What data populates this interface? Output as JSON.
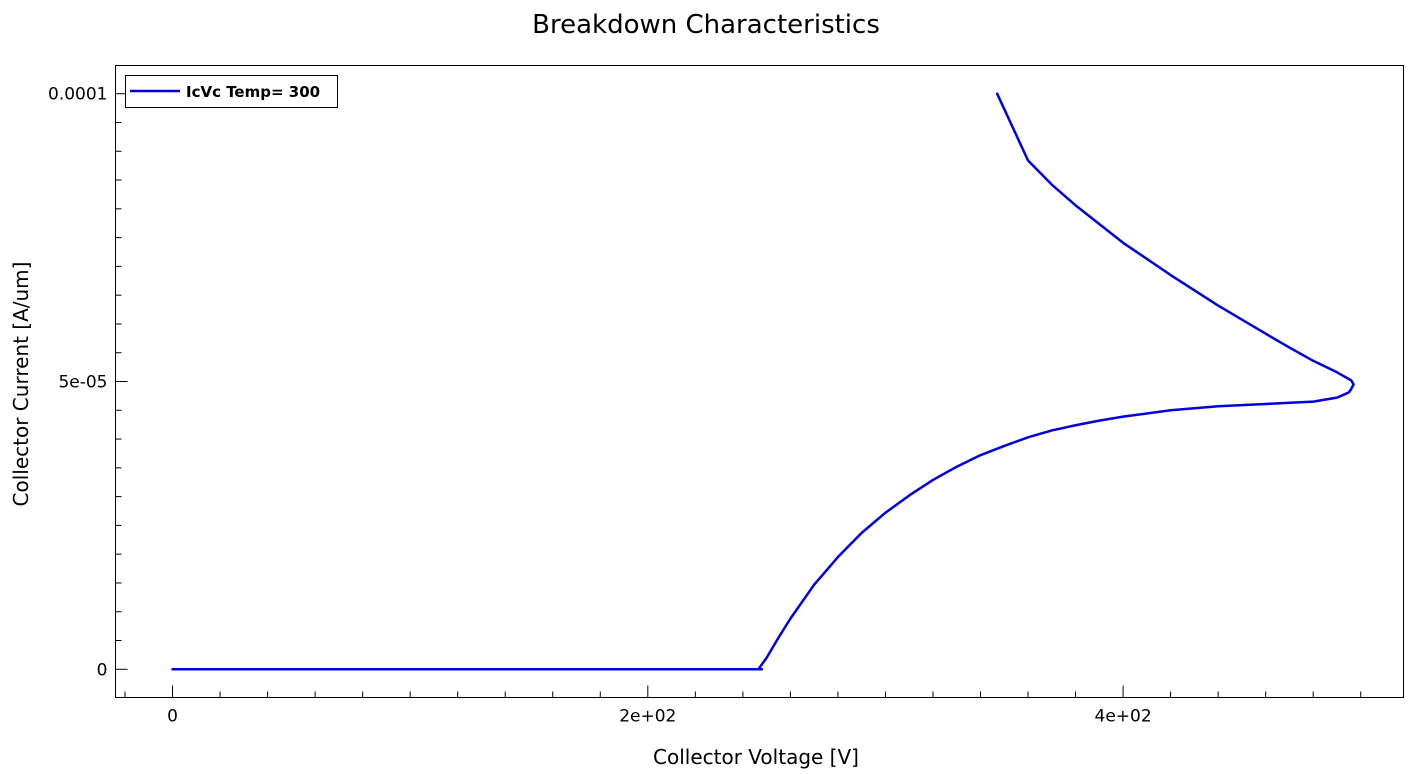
{
  "chart_data": {
    "type": "line",
    "title": "Breakdown Characteristics",
    "xlabel": "Collector Voltage [V]",
    "ylabel": "Collector Current [A/um]",
    "xlim": [
      -24,
      518
    ],
    "ylim": [
      -4.9e-06,
      0.0001049
    ],
    "xticks": [
      0,
      200,
      400
    ],
    "xtick_labels": [
      "0",
      "2e+02",
      "4e+02"
    ],
    "yticks": [
      0,
      5e-05,
      0.0001
    ],
    "ytick_labels": [
      "0",
      "5e-05",
      "0.0001"
    ],
    "x_minor_step": 20,
    "y_minor_step": 5e-06,
    "legend": {
      "position": "top-left"
    },
    "series": [
      {
        "name": "IcVc Temp= 300",
        "color": "#0000dd",
        "x": [
          0,
          50,
          100,
          150,
          200,
          240,
          248,
          246.5,
          250,
          255,
          260,
          270,
          280,
          290,
          300,
          310,
          320,
          330,
          340,
          350,
          360,
          370,
          380,
          390,
          400,
          420,
          440,
          460,
          480,
          490,
          495,
          496,
          497,
          496,
          490,
          480,
          470,
          460,
          440,
          420,
          400,
          380,
          370,
          360,
          347
        ],
        "y": [
          0,
          0,
          0,
          0,
          0,
          0,
          0,
          0,
          2e-06,
          5.5e-06,
          8.8e-06,
          1.47e-05,
          1.95e-05,
          2.37e-05,
          2.72e-05,
          3.02e-05,
          3.29e-05,
          3.52e-05,
          3.72e-05,
          3.88e-05,
          4.03e-05,
          4.15e-05,
          4.24e-05,
          4.32e-05,
          4.39e-05,
          4.5e-05,
          4.57e-05,
          4.61e-05,
          4.65e-05,
          4.72e-05,
          4.81e-05,
          4.87e-05,
          4.95e-05,
          5.02e-05,
          5.16e-05,
          5.36e-05,
          5.59e-05,
          5.83e-05,
          6.32e-05,
          6.85e-05,
          7.41e-05,
          8.06e-05,
          8.42e-05,
          8.84e-05,
          0.0001
        ]
      }
    ]
  }
}
